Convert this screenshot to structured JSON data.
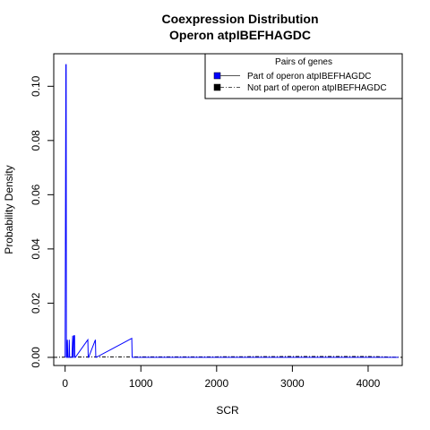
{
  "chart_data": {
    "type": "line",
    "title": "Coexpression Distribution",
    "subtitle": "Operon atpIBEFHAGDC",
    "xlabel": "SCR",
    "ylabel": "Probability Density",
    "xlim": [
      -150,
      4450
    ],
    "ylim": [
      -0.003,
      0.112
    ],
    "x_ticks": [
      0,
      1000,
      2000,
      3000,
      4000
    ],
    "y_ticks": [
      0.0,
      0.02,
      0.04,
      0.06,
      0.08,
      0.1
    ],
    "x_tick_labels": [
      "0",
      "1000",
      "2000",
      "3000",
      "4000"
    ],
    "y_tick_labels": [
      "0.00",
      "0.02",
      "0.04",
      "0.06",
      "0.08",
      "0.10"
    ],
    "grid": false,
    "legend": {
      "title": "Pairs of genes",
      "placement": "top-right",
      "entries": [
        "Part of operon atpIBEFHAGDC",
        "Not part of operon atpIBEFHAGDC"
      ]
    },
    "series": [
      {
        "name": "Part of operon atpIBEFHAGDC",
        "color": "#0000ff",
        "x": [
          0,
          10,
          14,
          17,
          22,
          30,
          35,
          50,
          55,
          60,
          65,
          70,
          90,
          100,
          105,
          110,
          115,
          125,
          128,
          135,
          300,
          305,
          310,
          400,
          405,
          410,
          880,
          885,
          890,
          4400
        ],
        "y": [
          0,
          0.108,
          0.108,
          0,
          0,
          0.0065,
          0,
          0,
          0.0065,
          0,
          0,
          0,
          0,
          0.008,
          0,
          0,
          0.008,
          0.008,
          0,
          0,
          0.0065,
          0,
          0,
          0.0065,
          0,
          0,
          0.007,
          0,
          0,
          0
        ]
      },
      {
        "name": "Not part of operon atpIBEFHAGDC",
        "color": "#000000",
        "x": [
          -150,
          0,
          500,
          1000,
          1500,
          2000,
          2500,
          3000,
          3500,
          4000,
          4200,
          4450
        ],
        "y": [
          0,
          0.0001,
          0.0002,
          0.0002,
          0.0002,
          0.0002,
          0.00025,
          0.0003,
          0.0003,
          0.0003,
          0.0002,
          0
        ]
      }
    ]
  }
}
